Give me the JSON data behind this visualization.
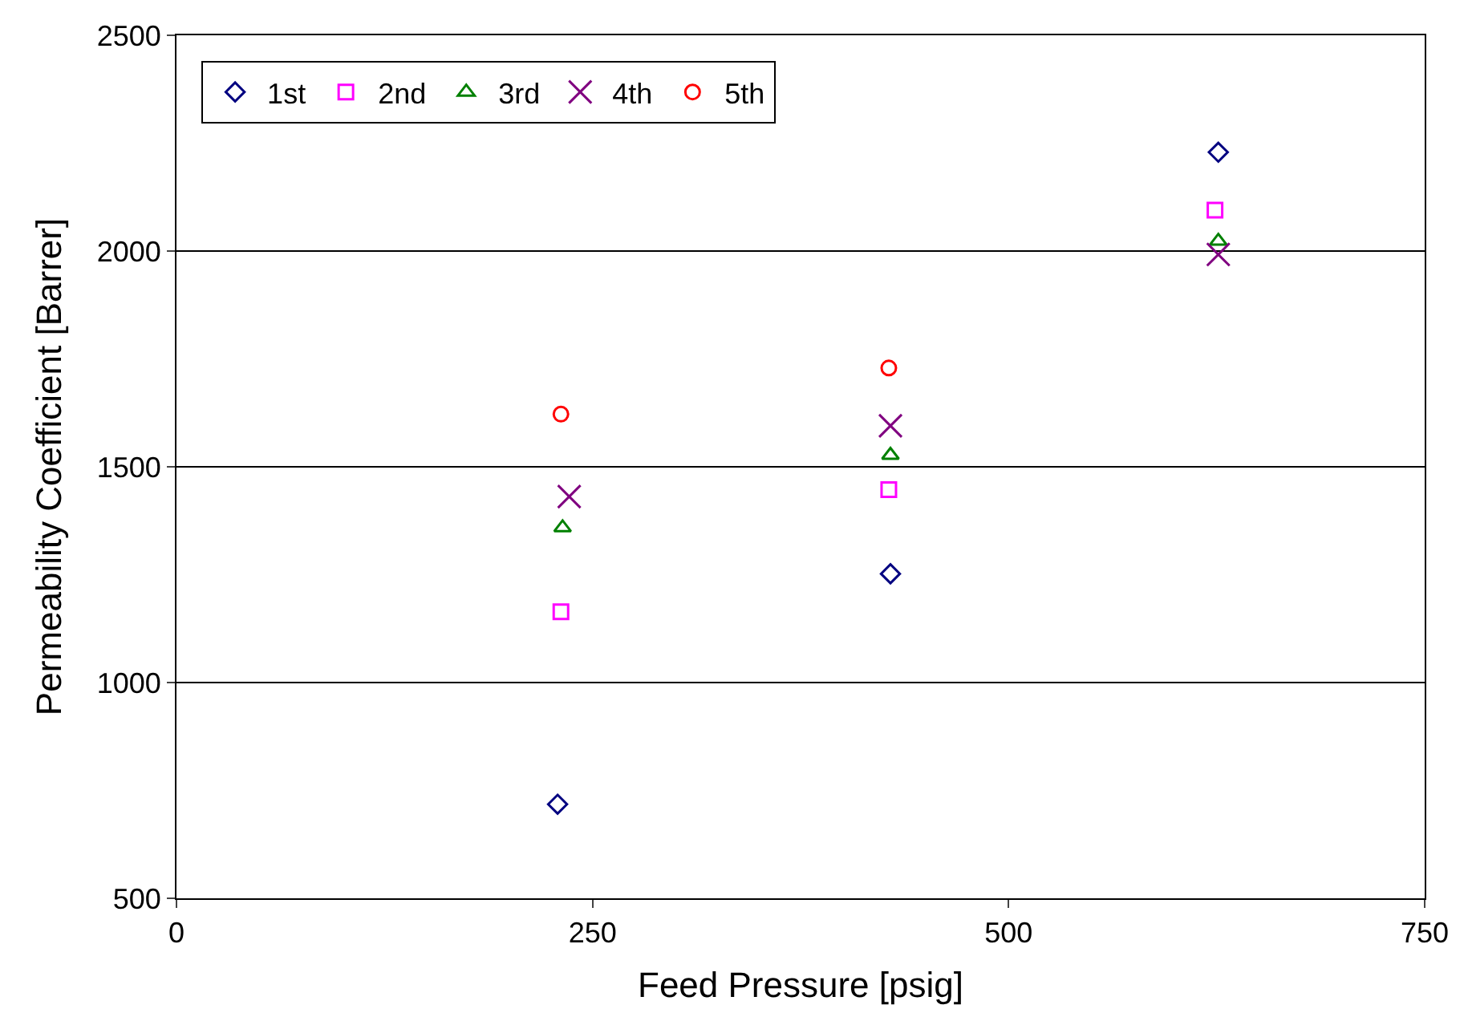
{
  "chart_data": {
    "type": "scatter",
    "xlabel": "Feed Pressure [psig]",
    "ylabel": "Permeability Coefficient [Barrer]",
    "xlim": [
      0,
      750
    ],
    "xticks": [
      0,
      250,
      500,
      750
    ],
    "ylim": [
      500,
      2500
    ],
    "yticks": [
      500,
      1000,
      1500,
      2000,
      2500
    ],
    "grid": "y",
    "legend": "top left",
    "series": [
      {
        "name": "1st",
        "color": "#000080",
        "marker": "diamond",
        "x": [
          229,
          429,
          626
        ],
        "values": [
          718,
          1252,
          2229
        ]
      },
      {
        "name": "2nd",
        "color": "#ff00ff",
        "marker": "square",
        "x": [
          231,
          428,
          624
        ],
        "values": [
          1164,
          1447,
          2095
        ]
      },
      {
        "name": "3rd",
        "color": "#008000",
        "marker": "triangle",
        "x": [
          232,
          429,
          626
        ],
        "values": [
          1359,
          1527,
          2023
        ]
      },
      {
        "name": "4th",
        "color": "#800080",
        "marker": "cross",
        "x": [
          236,
          429,
          626
        ],
        "values": [
          1431,
          1595,
          1992
        ]
      },
      {
        "name": "5th",
        "color": "#ff0000",
        "marker": "circle",
        "x": [
          231,
          428
        ],
        "values": [
          1622,
          1729
        ]
      }
    ]
  }
}
